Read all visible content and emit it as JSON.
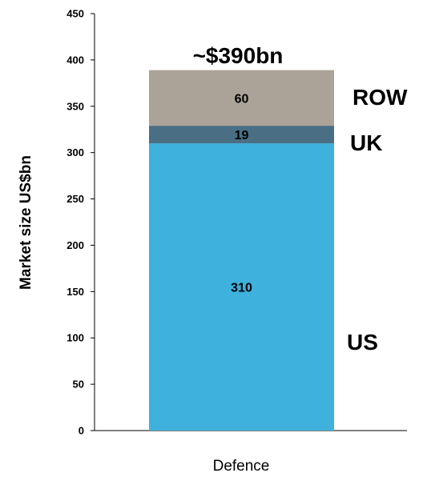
{
  "chart_data": {
    "type": "bar",
    "stacked": true,
    "categories": [
      "Defence"
    ],
    "series": [
      {
        "name": "US",
        "values": [
          310
        ],
        "color": "#3eb1dc",
        "value_label": "310"
      },
      {
        "name": "UK",
        "values": [
          19
        ],
        "color": "#4a6f85",
        "value_label": "19"
      },
      {
        "name": "ROW",
        "values": [
          60
        ],
        "color": "#aca398",
        "value_label": "60"
      }
    ],
    "total_label": "~$390bn",
    "ylabel": "Market size US$bn",
    "xlabel": "",
    "ylim": [
      0,
      450
    ],
    "yticks": [
      0,
      50,
      100,
      150,
      200,
      250,
      300,
      350,
      400,
      450
    ],
    "ytick_labels": [
      "0",
      "50",
      "100",
      "150",
      "200",
      "250",
      "300",
      "350",
      "400",
      "450"
    ],
    "grid": false,
    "legend": "labels beside bar"
  }
}
